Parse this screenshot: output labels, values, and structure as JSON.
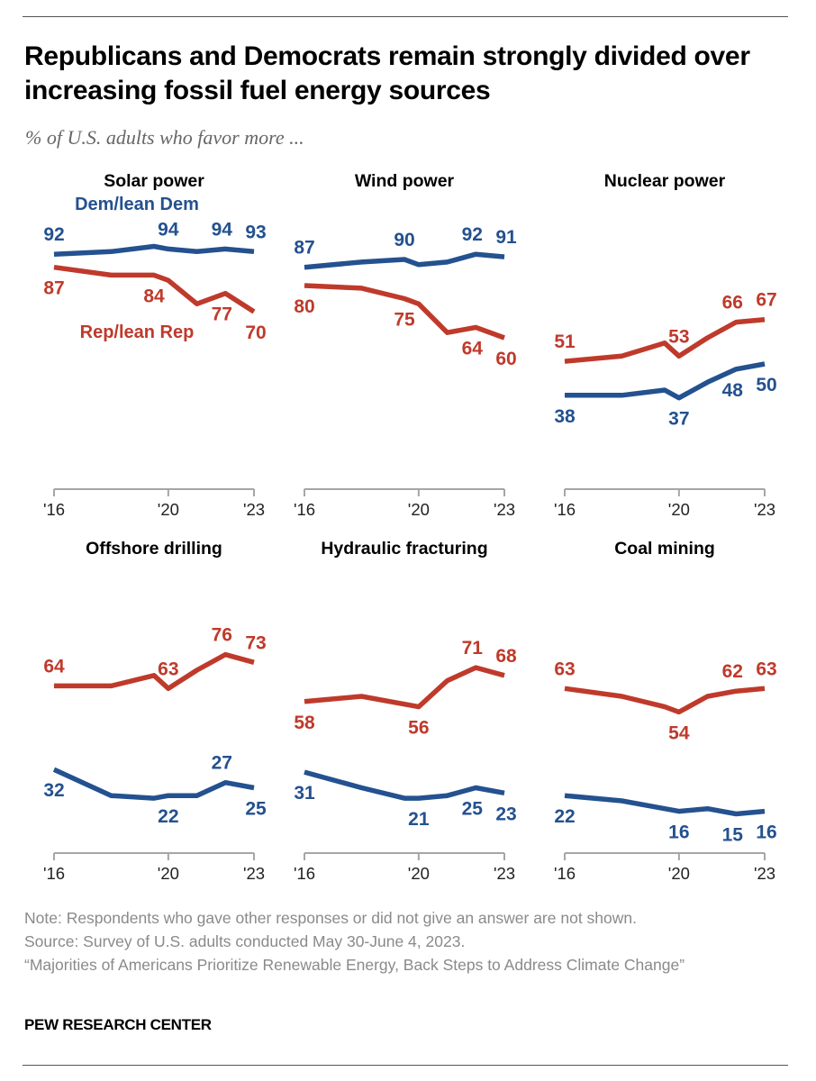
{
  "title": "Republicans and Democrats remain strongly divided over increasing fossil fuel energy sources",
  "subtitle": "% of U.S. adults who favor more ...",
  "colors": {
    "dem": "#24518f",
    "rep": "#bf3a2b",
    "axis": "#a6a6a6"
  },
  "notes": {
    "note": "Note: Respondents who gave other responses or did not give an answer are not shown.",
    "source": "Source: Survey of U.S. adults conducted May 30-June 4, 2023.",
    "report": "“Majorities of Americans Prioritize Renewable Energy, Back Steps to Address Climate Change”"
  },
  "brand": "PEW RESEARCH CENTER",
  "chart_data": [
    {
      "type": "line",
      "title": "Solar power",
      "x": [
        2016,
        2018,
        2019.5,
        2020,
        2021,
        2022,
        2023
      ],
      "xlim": [
        2016,
        2023
      ],
      "ylim": [
        0,
        100
      ],
      "xticks": [
        "'16",
        "'20",
        "'23"
      ],
      "grid": false,
      "series": [
        {
          "name": "Dem/lean Dem",
          "key": "dem",
          "values": [
            92,
            93,
            95,
            94,
            93,
            94,
            93
          ]
        },
        {
          "name": "Rep/lean Rep",
          "key": "rep",
          "values": [
            87,
            84,
            84,
            82,
            73,
            77,
            70
          ]
        }
      ]
    },
    {
      "type": "line",
      "title": "Wind power",
      "x": [
        2016,
        2018,
        2019.5,
        2020,
        2021,
        2022,
        2023
      ],
      "xlim": [
        2016,
        2023
      ],
      "ylim": [
        0,
        100
      ],
      "xticks": [
        "'16",
        "'20",
        "'23"
      ],
      "grid": false,
      "series": [
        {
          "key": "dem",
          "values": [
            87,
            89,
            90,
            88,
            89,
            92,
            91
          ]
        },
        {
          "key": "rep",
          "values": [
            80,
            79,
            75,
            73,
            62,
            64,
            60
          ]
        }
      ]
    },
    {
      "type": "line",
      "title": "Nuclear power",
      "x": [
        2016,
        2018,
        2019.5,
        2020,
        2021,
        2022,
        2023
      ],
      "xlim": [
        2016,
        2023
      ],
      "ylim": [
        0,
        100
      ],
      "xticks": [
        "'16",
        "'20",
        "'23"
      ],
      "grid": false,
      "series": [
        {
          "key": "rep",
          "values": [
            51,
            53,
            58,
            53,
            60,
            66,
            67
          ]
        },
        {
          "key": "dem",
          "values": [
            38,
            38,
            40,
            37,
            43,
            48,
            50
          ]
        }
      ]
    },
    {
      "type": "line",
      "title": "Offshore drilling",
      "x": [
        2016,
        2018,
        2019.5,
        2020,
        2021,
        2022,
        2023
      ],
      "xlim": [
        2016,
        2023
      ],
      "ylim": [
        0,
        100
      ],
      "xticks": [
        "'16",
        "'20",
        "'23"
      ],
      "grid": false,
      "series": [
        {
          "key": "rep",
          "values": [
            64,
            64,
            68,
            63,
            70,
            76,
            73
          ]
        },
        {
          "key": "dem",
          "values": [
            32,
            22,
            21,
            22,
            22,
            27,
            25
          ]
        }
      ]
    },
    {
      "type": "line",
      "title": "Hydraulic fracturing",
      "x": [
        2016,
        2018,
        2019.5,
        2020,
        2021,
        2022,
        2023
      ],
      "xlim": [
        2016,
        2023
      ],
      "ylim": [
        0,
        100
      ],
      "xticks": [
        "'16",
        "'20",
        "'23"
      ],
      "grid": false,
      "series": [
        {
          "key": "rep",
          "values": [
            58,
            60,
            57,
            56,
            66,
            71,
            68
          ]
        },
        {
          "key": "dem",
          "values": [
            31,
            25,
            21,
            21,
            22,
            25,
            23
          ]
        }
      ]
    },
    {
      "type": "line",
      "title": "Coal mining",
      "x": [
        2016,
        2018,
        2019.5,
        2020,
        2021,
        2022,
        2023
      ],
      "xlim": [
        2016,
        2023
      ],
      "ylim": [
        0,
        100
      ],
      "xticks": [
        "'16",
        "'20",
        "'23"
      ],
      "grid": false,
      "series": [
        {
          "key": "rep",
          "values": [
            63,
            60,
            56,
            54,
            60,
            62,
            63
          ]
        },
        {
          "key": "dem",
          "values": [
            22,
            20,
            17,
            16,
            17,
            15,
            16
          ]
        }
      ]
    }
  ]
}
